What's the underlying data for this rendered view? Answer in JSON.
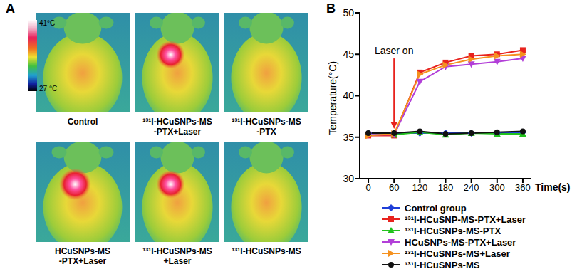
{
  "panel_a": {
    "title": "A",
    "colorbar": {
      "range": [
        27,
        41
      ],
      "ticks": [
        {
          "value": 41,
          "label": "41°C"
        },
        {
          "value": 27,
          "label": "27 °C"
        }
      ]
    },
    "images": [
      {
        "label": [
          "Control"
        ],
        "hot_spot": false
      },
      {
        "label": [
          "¹³¹I-HCuSNPs-MS",
          "-PTX+Laser"
        ],
        "hot_spot": true
      },
      {
        "label": [
          "¹³¹I-HCuSNPs-MS",
          "-PTX"
        ],
        "hot_spot": false
      },
      {
        "label": [
          "HCuSNPs-MS",
          "-PTX+Laser"
        ],
        "hot_spot": true
      },
      {
        "label": [
          "¹³¹I-HCuSNPs-MS",
          "+Laser"
        ],
        "hot_spot": true
      },
      {
        "label": [
          "¹³¹I-HCuSNPs-MS"
        ],
        "hot_spot": false
      }
    ]
  },
  "chart_data": {
    "type": "line",
    "title": "B",
    "x_label": "Time(s)",
    "y_label": "Temperature(°C)",
    "x": [
      0,
      60,
      120,
      180,
      240,
      300,
      360
    ],
    "xlim": [
      -20,
      380
    ],
    "xticks": [
      0,
      60,
      120,
      180,
      240,
      300,
      360
    ],
    "ylim": [
      30,
      50
    ],
    "yticks": [
      30,
      35,
      40,
      45,
      50
    ],
    "grid": false,
    "legend": "bottom",
    "annotation": {
      "text": "Laser on",
      "x": 60,
      "y_from": 44.5,
      "y_to": 36
    },
    "series": [
      {
        "name": "Control group",
        "color": "#1f3fd8",
        "marker": "diamond",
        "values": [
          35.5,
          35.5,
          35.5,
          35.5,
          35.5,
          35.5,
          35.6
        ]
      },
      {
        "name": "¹³¹I-HCuSNP-MS-PTX+Laser",
        "color": "#e8231e",
        "marker": "square",
        "values": [
          35.2,
          35.2,
          42.8,
          44.0,
          44.8,
          45.0,
          45.5
        ]
      },
      {
        "name": "¹³¹I-HCuSNPs-MS-PTX",
        "color": "#22c21e",
        "marker": "triangle",
        "values": [
          35.5,
          35.3,
          35.6,
          35.3,
          35.5,
          35.4,
          35.4
        ]
      },
      {
        "name": "HCuSNPs-MS-PTX+Laser",
        "color": "#b23fd8",
        "marker": "triangle-down",
        "values": [
          35.3,
          35.3,
          41.7,
          43.5,
          43.8,
          44.1,
          44.5
        ]
      },
      {
        "name": "¹³¹I-HCuSNPs-MS+Laser",
        "color": "#f5911e",
        "marker": "triangle-right",
        "values": [
          35.2,
          35.4,
          42.6,
          43.7,
          44.4,
          44.8,
          45.0
        ]
      },
      {
        "name": "¹³¹I-HCuSNPs-MS",
        "color": "#111111",
        "marker": "circle",
        "values": [
          35.5,
          35.5,
          35.7,
          35.4,
          35.5,
          35.6,
          35.7
        ]
      }
    ]
  }
}
